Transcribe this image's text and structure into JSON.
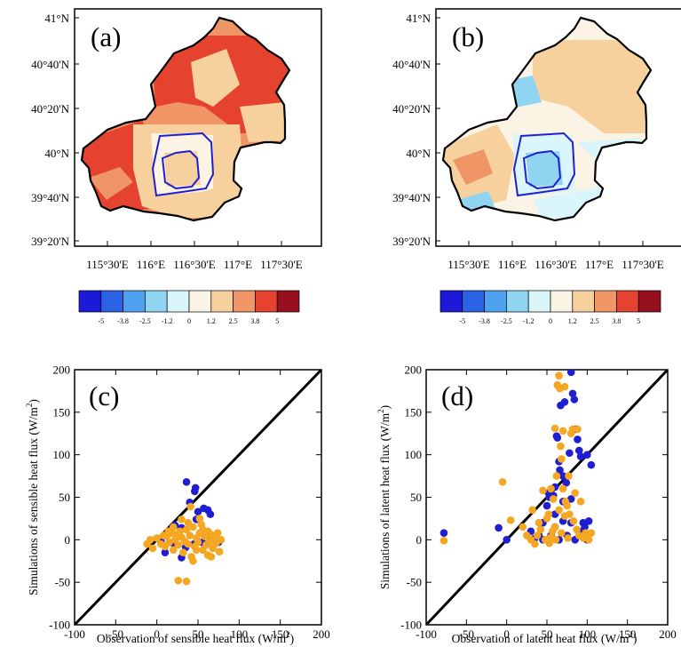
{
  "colorbar": {
    "colors": [
      "#1c1ad6",
      "#2b62e6",
      "#4ea1ef",
      "#8fd5f2",
      "#dbf6fb",
      "#fbf4e4",
      "#f6d09d",
      "#f09565",
      "#e5432f",
      "#950f1f"
    ],
    "labels": [
      "-5",
      "-3.8",
      "-2.5",
      "-1.2",
      "0",
      "1.2",
      "2.5",
      "3.8",
      "5"
    ]
  },
  "maps": [
    {
      "label": "(a)",
      "lat_ticks": [
        "41°N",
        "40°40'N",
        "40°20'N",
        "40°N",
        "39°40'N",
        "39°20'N"
      ],
      "lon_ticks": [
        "115°30'E",
        "116°E",
        "116°30'E",
        "117°E",
        "117°30'E"
      ],
      "dominant_colors": [
        "#e5432f",
        "#f09565",
        "#f6d09d",
        "#fbf4e4"
      ]
    },
    {
      "label": "(b)",
      "lat_ticks": [
        "41°N",
        "40°40'N",
        "40°20'N",
        "40°N",
        "39°40'N",
        "39°20'N"
      ],
      "lon_ticks": [
        "115°30'E",
        "116°E",
        "116°30'E",
        "117°E",
        "117°30'E"
      ],
      "dominant_colors": [
        "#f6d09d",
        "#fbf4e4",
        "#dbf6fb",
        "#8fd5f2",
        "#f09565"
      ]
    }
  ],
  "chart_data": [
    {
      "type": "scatter",
      "label": "(c)",
      "xlabel": "Observation of sensible heat flux (W/m",
      "ylabel": "Simulations of sensible heat flux (W/m",
      "label_exponent": "2",
      "xlim": [
        -100,
        200
      ],
      "ylim": [
        -100,
        200
      ],
      "xticks": [
        "-100",
        "-50",
        "0",
        "50",
        "100",
        "150",
        "200"
      ],
      "yticks": [
        "-100",
        "-50",
        "0",
        "50",
        "100",
        "150",
        "200"
      ],
      "reference_line": "1:1",
      "series": [
        {
          "color": "#1f1fd0",
          "points": [
            [
              36,
              68
            ],
            [
              46,
              57
            ],
            [
              47,
              61
            ],
            [
              40,
              44
            ],
            [
              57,
              37
            ],
            [
              62,
              35
            ],
            [
              65,
              30
            ],
            [
              50,
              33
            ],
            [
              30,
              14
            ],
            [
              25,
              5
            ],
            [
              20,
              -4
            ],
            [
              35,
              -9
            ],
            [
              45,
              -5
            ],
            [
              55,
              -3
            ],
            [
              60,
              5
            ],
            [
              70,
              0
            ],
            [
              75,
              -3
            ],
            [
              30,
              -21
            ],
            [
              10,
              -15
            ],
            [
              5,
              -2
            ],
            [
              48,
              24
            ],
            [
              22,
              17
            ]
          ]
        },
        {
          "color": "#f5a623",
          "points": [
            [
              -12,
              -5
            ],
            [
              -8,
              0
            ],
            [
              -5,
              -10
            ],
            [
              0,
              2
            ],
            [
              5,
              -5
            ],
            [
              8,
              5
            ],
            [
              10,
              -8
            ],
            [
              12,
              4
            ],
            [
              15,
              -3
            ],
            [
              18,
              8
            ],
            [
              20,
              -12
            ],
            [
              22,
              0
            ],
            [
              24,
              6
            ],
            [
              26,
              -6
            ],
            [
              28,
              10
            ],
            [
              30,
              3
            ],
            [
              32,
              -15
            ],
            [
              34,
              -2
            ],
            [
              36,
              12
            ],
            [
              38,
              -5
            ],
            [
              40,
              5
            ],
            [
              42,
              -20
            ],
            [
              44,
              15
            ],
            [
              46,
              -8
            ],
            [
              48,
              2
            ],
            [
              50,
              -3
            ],
            [
              52,
              8
            ],
            [
              54,
              18
            ],
            [
              56,
              -12
            ],
            [
              58,
              4
            ],
            [
              60,
              -6
            ],
            [
              62,
              10
            ],
            [
              64,
              -2
            ],
            [
              66,
              6
            ],
            [
              68,
              -10
            ],
            [
              70,
              2
            ],
            [
              72,
              -4
            ],
            [
              74,
              8
            ],
            [
              76,
              -14
            ],
            [
              78,
              0
            ],
            [
              26,
              -48
            ],
            [
              36,
              -49
            ],
            [
              44,
              -25
            ],
            [
              52,
              25
            ],
            [
              41,
              39
            ],
            [
              30,
              24
            ],
            [
              20,
              15
            ],
            [
              62,
              -18
            ],
            [
              14,
              10
            ],
            [
              48,
              -12
            ],
            [
              56,
              12
            ],
            [
              66,
              -20
            ],
            [
              38,
              20
            ]
          ]
        }
      ]
    },
    {
      "type": "scatter",
      "label": "(d)",
      "xlabel": "Observation of latent heat flux (W/m",
      "ylabel": "Simulations of latent heat flux (W/m",
      "label_exponent": "2",
      "xlim": [
        -100,
        200
      ],
      "ylim": [
        -100,
        200
      ],
      "xticks": [
        "-100",
        "-50",
        "0",
        "50",
        "100",
        "150",
        "200"
      ],
      "yticks": [
        "-100",
        "-50",
        "0",
        "50",
        "100",
        "150",
        "200"
      ],
      "reference_line": "1:1",
      "series": [
        {
          "color": "#1f1fd0",
          "points": [
            [
              -78,
              8
            ],
            [
              -10,
              14
            ],
            [
              0,
              0
            ],
            [
              30,
              10
            ],
            [
              40,
              5
            ],
            [
              45,
              20
            ],
            [
              52,
              55
            ],
            [
              53,
              50
            ],
            [
              58,
              52
            ],
            [
              60,
              62
            ],
            [
              62,
              122
            ],
            [
              63,
              120
            ],
            [
              65,
              92
            ],
            [
              66,
              82
            ],
            [
              67,
              158
            ],
            [
              70,
              75
            ],
            [
              72,
              162
            ],
            [
              74,
              67
            ],
            [
              78,
              102
            ],
            [
              80,
              197
            ],
            [
              82,
              172
            ],
            [
              84,
              165
            ],
            [
              86,
              130
            ],
            [
              88,
              118
            ],
            [
              90,
              105
            ],
            [
              92,
              98
            ],
            [
              95,
              20
            ],
            [
              97,
              15
            ],
            [
              100,
              100
            ],
            [
              102,
              22
            ],
            [
              105,
              88
            ],
            [
              60,
              15
            ],
            [
              70,
              22
            ],
            [
              80,
              20
            ],
            [
              90,
              10
            ],
            [
              55,
              5
            ],
            [
              65,
              0
            ],
            [
              75,
              5
            ],
            [
              85,
              0
            ],
            [
              100,
              0
            ],
            [
              50,
              40
            ],
            [
              60,
              30
            ],
            [
              70,
              45
            ],
            [
              80,
              48
            ],
            [
              45,
              0
            ],
            [
              35,
              2
            ]
          ]
        },
        {
          "color": "#f5a623",
          "points": [
            [
              -78,
              -1
            ],
            [
              -5,
              68
            ],
            [
              5,
              23
            ],
            [
              20,
              15
            ],
            [
              25,
              5
            ],
            [
              30,
              0
            ],
            [
              32,
              35
            ],
            [
              35,
              -5
            ],
            [
              38,
              5
            ],
            [
              40,
              20
            ],
            [
              42,
              12
            ],
            [
              45,
              58
            ],
            [
              48,
              0
            ],
            [
              50,
              25
            ],
            [
              52,
              30
            ],
            [
              55,
              3
            ],
            [
              57,
              10
            ],
            [
              60,
              15
            ],
            [
              60,
              131
            ],
            [
              63,
              182
            ],
            [
              65,
              193
            ],
            [
              66,
              178
            ],
            [
              67,
              110
            ],
            [
              68,
              95
            ],
            [
              70,
              128
            ],
            [
              72,
              180
            ],
            [
              73,
              45
            ],
            [
              75,
              40
            ],
            [
              78,
              30
            ],
            [
              80,
              125
            ],
            [
              82,
              130
            ],
            [
              85,
              55
            ],
            [
              88,
              130
            ],
            [
              90,
              5
            ],
            [
              92,
              45
            ],
            [
              95,
              2
            ],
            [
              98,
              8
            ],
            [
              100,
              5
            ],
            [
              102,
              0
            ],
            [
              105,
              8
            ],
            [
              55,
              60
            ],
            [
              62,
              75
            ],
            [
              70,
              60
            ],
            [
              77,
              75
            ],
            [
              58,
              48
            ],
            [
              65,
              35
            ],
            [
              72,
              28
            ],
            [
              83,
              22
            ],
            [
              87,
              12
            ],
            [
              68,
              8
            ],
            [
              76,
              2
            ],
            [
              61,
              0
            ],
            [
              53,
              -4
            ]
          ]
        }
      ]
    }
  ]
}
